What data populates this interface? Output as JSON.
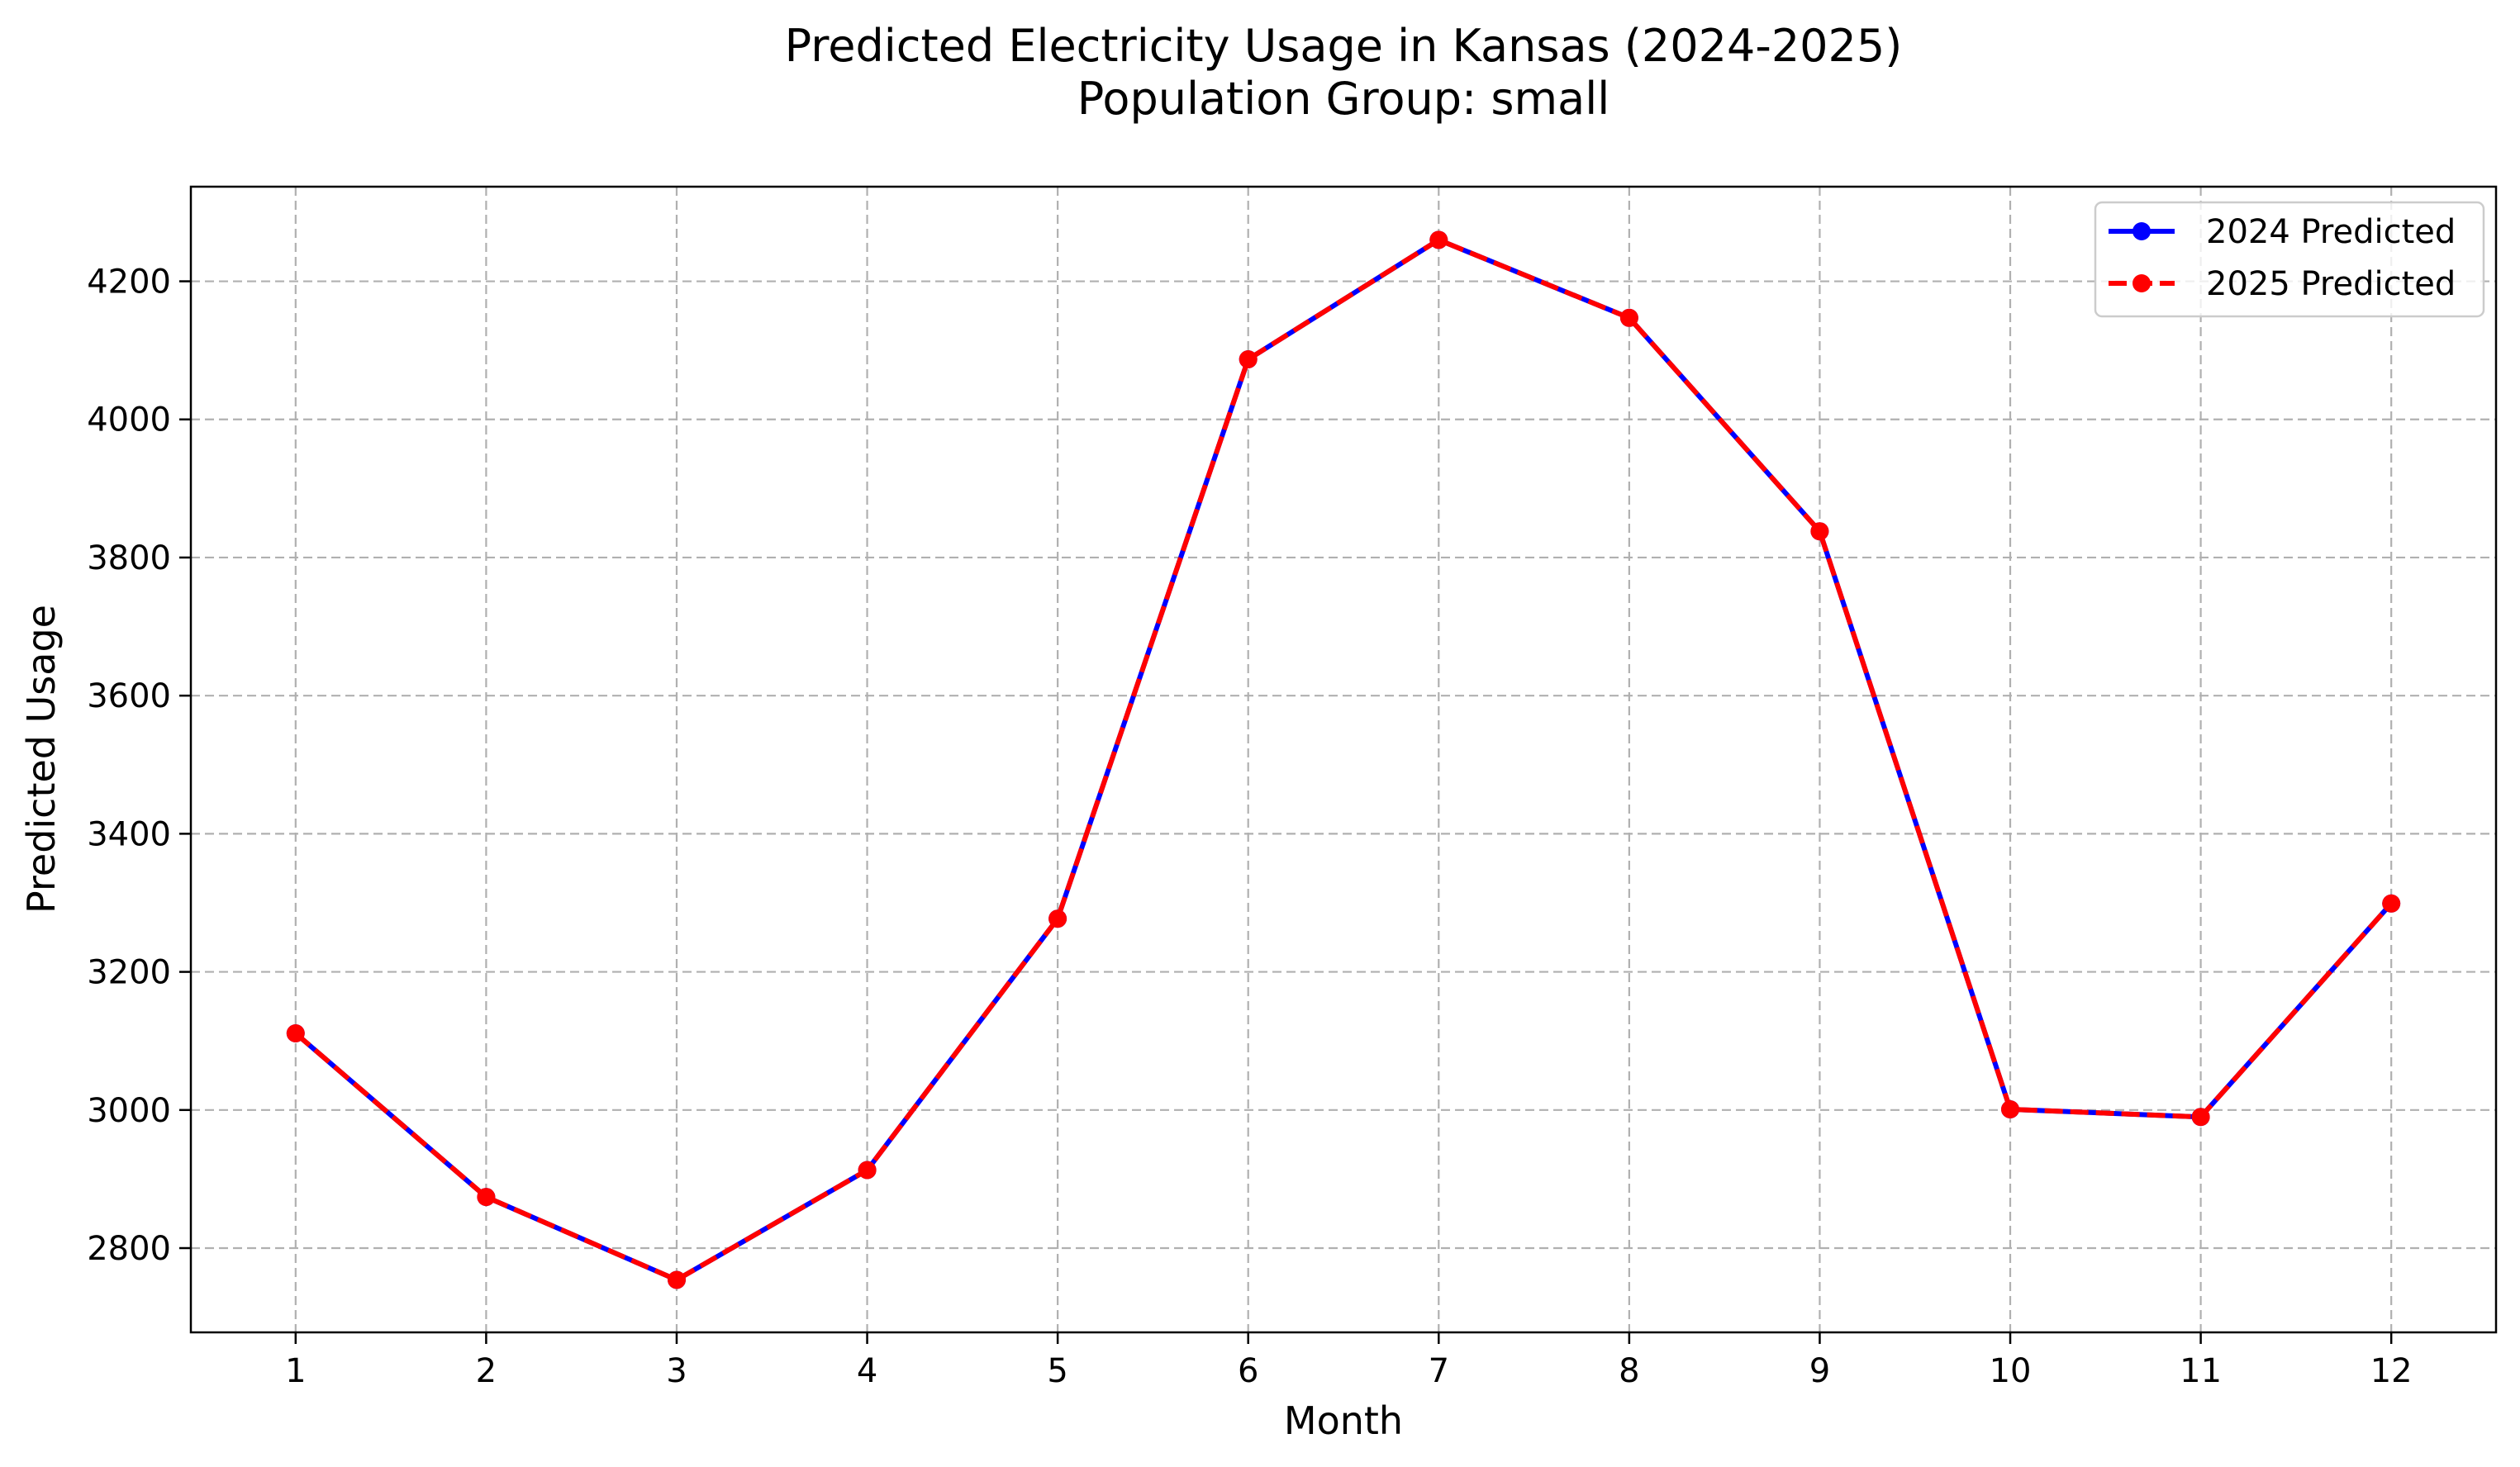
{
  "chart_data": {
    "type": "line",
    "title": "Predicted Electricity Usage in Kansas (2024-2025)",
    "subtitle": "Population Group: small",
    "xlabel": "Month",
    "ylabel": "Predicted Usage",
    "x": [
      1,
      2,
      3,
      4,
      5,
      6,
      7,
      8,
      9,
      10,
      11,
      12
    ],
    "xlim": [
      0.45,
      12.55
    ],
    "ylim": [
      2678,
      4337
    ],
    "yticks": [
      2800,
      3000,
      3200,
      3400,
      3600,
      3800,
      4000,
      4200
    ],
    "grid": true,
    "legend_position": "top-right",
    "series": [
      {
        "name": "2024 Predicted",
        "color": "#0000ff",
        "line_style": "solid",
        "marker": "circle",
        "values": [
          3111,
          2874,
          2754,
          2913,
          3277,
          4087,
          4260,
          4147,
          3838,
          3001,
          2990,
          3299
        ]
      },
      {
        "name": "2025 Predicted",
        "color": "#ff0000",
        "line_style": "dashed",
        "marker": "circle",
        "values": [
          3111,
          2874,
          2754,
          2913,
          3277,
          4087,
          4260,
          4147,
          3838,
          3001,
          2990,
          3299
        ]
      }
    ]
  }
}
